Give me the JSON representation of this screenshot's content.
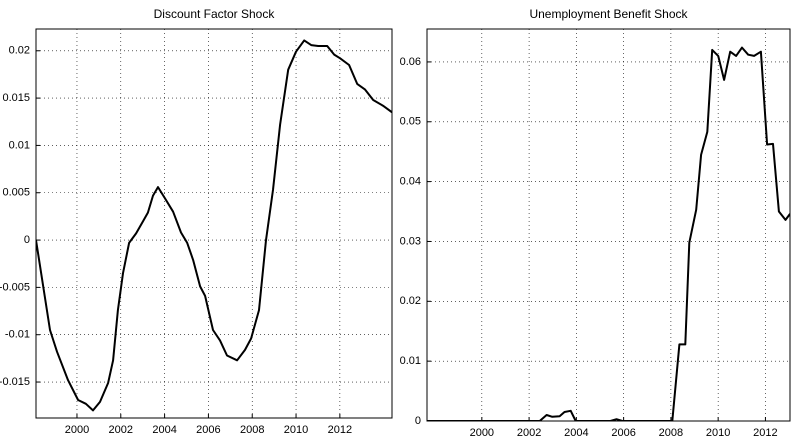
{
  "chart_data": [
    {
      "type": "line",
      "title": "Discount Factor Shock",
      "color": "#000000",
      "grid": true,
      "x": [
        1998.13,
        1998.77,
        1999.09,
        1999.59,
        2000.05,
        2000.41,
        2000.73,
        2001.05,
        2001.42,
        2001.65,
        2001.87,
        2002.1,
        2002.38,
        2002.7,
        2003.02,
        2003.24,
        2003.47,
        2003.7,
        2004.02,
        2004.39,
        2004.75,
        2005.03,
        2005.3,
        2005.62,
        2005.85,
        2006.21,
        2006.53,
        2006.85,
        2007.31,
        2007.67,
        2007.95,
        2008.31,
        2008.63,
        2008.95,
        2009.27,
        2009.64,
        2010.0,
        2010.37,
        2010.69,
        2011.01,
        2011.42,
        2011.74,
        2012.01,
        2012.42,
        2012.79,
        2013.15,
        2013.52,
        2013.97,
        2014.38
      ],
      "values": [
        0,
        -0.0095,
        -0.0118,
        -0.0148,
        -0.0169,
        -0.0173,
        -0.018,
        -0.0171,
        -0.0151,
        -0.0127,
        -0.0074,
        -0.0035,
        -0.0003,
        0.0007,
        0.002,
        0.0029,
        0.0047,
        0.0056,
        0.0044,
        0.003,
        0.0008,
        -0.0003,
        -0.0021,
        -0.0049,
        -0.0059,
        -0.0095,
        -0.0106,
        -0.0122,
        -0.0127,
        -0.0116,
        -0.0104,
        -0.0074,
        0,
        0.0053,
        0.0122,
        0.018,
        0.0199,
        0.0211,
        0.0206,
        0.0205,
        0.0205,
        0.0196,
        0.0192,
        0.0185,
        0.0165,
        0.0159,
        0.0148,
        0.0142,
        0.0135
      ],
      "xlim": [
        1998.13,
        2014.38
      ],
      "xticks": [
        2000,
        2002,
        2004,
        2006,
        2008,
        2010,
        2012
      ],
      "ylim": [
        -0.0188,
        0.0223
      ],
      "yticks": [
        -0.015,
        -0.01,
        -0.005,
        0,
        0.005,
        0.01,
        0.015,
        0.02
      ]
    },
    {
      "type": "line",
      "title": "Unemployment Benefit Shock",
      "color": "#000000",
      "grid": true,
      "x": [
        1997.68,
        2002.45,
        2002.74,
        2002.98,
        2003.29,
        2003.5,
        2003.76,
        2003.97,
        2004.98,
        2005.44,
        2005.7,
        2005.95,
        2008.06,
        2008.36,
        2008.61,
        2008.78,
        2009.07,
        2009.28,
        2009.54,
        2009.75,
        2010.0,
        2010.25,
        2010.51,
        2010.76,
        2011.01,
        2011.27,
        2011.52,
        2011.81,
        2012.07,
        2012.32,
        2012.57,
        2012.85,
        2013.04
      ],
      "values": [
        0,
        0,
        0.001,
        0.0007,
        0.0008,
        0.0015,
        0.0017,
        0,
        0,
        0,
        0.0003,
        0,
        0,
        0.0128,
        0.0128,
        0.0298,
        0.0353,
        0.0445,
        0.0483,
        0.062,
        0.061,
        0.057,
        0.0617,
        0.061,
        0.0624,
        0.0612,
        0.061,
        0.0617,
        0.0462,
        0.0463,
        0.035,
        0.0336,
        0.0346
      ],
      "xlim": [
        1997.68,
        2013.04
      ],
      "xticks": [
        2000,
        2002,
        2004,
        2006,
        2008,
        2010,
        2012
      ],
      "ylim": [
        0,
        0.0655
      ],
      "yticks": [
        0,
        0.01,
        0.02,
        0.03,
        0.04,
        0.05,
        0.06
      ]
    }
  ]
}
